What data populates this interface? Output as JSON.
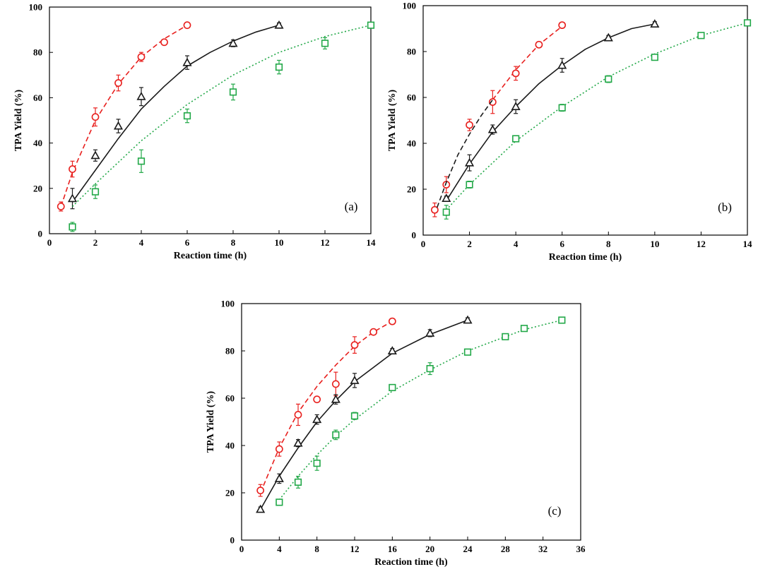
{
  "chart_data": [
    {
      "type": "scatter",
      "panel_label": "(a)",
      "xlabel": "Reaction time (h)",
      "ylabel": "TPA Yield (%)",
      "xlim": [
        0,
        14
      ],
      "ylim": [
        0,
        100
      ],
      "xticks": [
        0,
        2,
        4,
        6,
        8,
        10,
        12,
        14
      ],
      "yticks": [
        0,
        20,
        40,
        60,
        80,
        100
      ],
      "grid": false,
      "series": [
        {
          "color": "#e8201e",
          "marker": "circle",
          "fit": "dashed",
          "x": [
            0.5,
            1,
            2,
            3,
            4,
            5,
            6
          ],
          "y": [
            12,
            28.5,
            51.5,
            66.5,
            78,
            84.5,
            92
          ],
          "err": [
            2,
            3.5,
            4,
            3.5,
            2,
            1,
            1
          ],
          "fit_x": [
            0.5,
            1,
            2,
            3,
            4,
            5,
            6
          ],
          "fit_y": [
            12,
            27,
            50,
            66,
            78,
            86,
            92
          ]
        },
        {
          "color": "#1a1a1a",
          "marker": "triangle",
          "fit": "solid",
          "x": [
            1,
            2,
            3,
            4,
            6,
            8,
            10
          ],
          "y": [
            15.5,
            34.5,
            47.5,
            60.5,
            75.5,
            84,
            92
          ],
          "err": [
            4.5,
            2.5,
            3,
            4,
            3,
            1.5,
            1
          ],
          "fit_x": [
            1,
            2,
            3,
            4,
            5,
            6,
            7,
            8,
            9,
            10
          ],
          "fit_y": [
            14,
            28,
            42,
            55,
            65,
            74,
            80,
            85,
            89,
            92
          ]
        },
        {
          "color": "#22a848",
          "marker": "square",
          "fit": "dotted",
          "x": [
            1,
            2,
            4,
            6,
            8,
            10,
            12,
            14
          ],
          "y": [
            3,
            18.5,
            32,
            52,
            62.5,
            73.5,
            84,
            92
          ],
          "err": [
            2,
            3,
            5,
            3,
            3.5,
            3,
            2.5,
            1
          ],
          "fit_x": [
            1,
            2,
            4,
            6,
            8,
            10,
            12,
            14
          ],
          "fit_y": [
            12,
            22,
            41,
            57,
            70,
            80,
            87,
            92
          ]
        }
      ]
    },
    {
      "type": "scatter",
      "panel_label": "(b)",
      "xlabel": "Reaction time (h)",
      "ylabel": "TPA Yield (%)",
      "xlim": [
        0,
        14
      ],
      "ylim": [
        0,
        100
      ],
      "xticks": [
        0,
        2,
        4,
        6,
        8,
        10,
        12,
        14
      ],
      "yticks": [
        0,
        20,
        40,
        60,
        80,
        100
      ],
      "grid": false,
      "series": [
        {
          "color": "#e8201e",
          "marker": "circle",
          "fit": "dashed",
          "x": [
            0.5,
            1,
            2,
            3,
            4,
            5,
            6
          ],
          "y": [
            11,
            22,
            48,
            58,
            70.5,
            83,
            91.5
          ],
          "err": [
            3,
            3.5,
            2.5,
            5,
            3,
            1,
            1
          ],
          "fit_x": [
            3,
            4,
            5,
            6
          ],
          "fit_y": [
            59,
            72,
            83,
            91
          ]
        },
        {
          "color": "#1a1a1a",
          "marker": "none",
          "fit": "dashed",
          "x": [],
          "y": [],
          "err": [],
          "fit_x": [
            0.6,
            1,
            1.5,
            2,
            2.5,
            3
          ],
          "fit_y": [
            12,
            23,
            35,
            44,
            52,
            59
          ]
        },
        {
          "color": "#1a1a1a",
          "marker": "triangle",
          "fit": "solid",
          "x": [
            1,
            2,
            3,
            4,
            6,
            8,
            10
          ],
          "y": [
            16,
            31.5,
            46,
            56,
            74,
            86,
            92
          ],
          "err": [
            1,
            3.5,
            2,
            3,
            3,
            1,
            1
          ],
          "fit_x": [
            1,
            2,
            3,
            4,
            5,
            6,
            7,
            8,
            9,
            10
          ],
          "fit_y": [
            15,
            31,
            45,
            56,
            66,
            74,
            81,
            86,
            90,
            92
          ]
        },
        {
          "color": "#22a848",
          "marker": "square",
          "fit": "dotted",
          "x": [
            1,
            2,
            4,
            6,
            8,
            10,
            12,
            14
          ],
          "y": [
            10,
            22,
            42,
            55.5,
            68,
            77.5,
            87,
            92.5
          ],
          "err": [
            3,
            1.5,
            1,
            1.5,
            1.5,
            1,
            1,
            1
          ],
          "fit_x": [
            1,
            2,
            4,
            6,
            8,
            10,
            12,
            14
          ],
          "fit_y": [
            11,
            22,
            41,
            56,
            69,
            79,
            87,
            92.5
          ]
        }
      ]
    },
    {
      "type": "scatter",
      "panel_label": "(c)",
      "xlabel": "Reaction time (h)",
      "ylabel": "TPA Yield (%)",
      "xlim": [
        0,
        36
      ],
      "ylim": [
        0,
        100
      ],
      "xticks": [
        0,
        4,
        8,
        12,
        16,
        20,
        24,
        28,
        32,
        36
      ],
      "yticks": [
        0,
        20,
        40,
        60,
        80,
        100
      ],
      "grid": false,
      "series": [
        {
          "color": "#e8201e",
          "marker": "circle",
          "fit": "dashed",
          "x": [
            2,
            4,
            6,
            8,
            10,
            12,
            14,
            16
          ],
          "y": [
            21,
            38.5,
            53,
            59.5,
            66,
            82.5,
            88,
            92.5
          ],
          "err": [
            2.5,
            3,
            4.5,
            1,
            5,
            3.5,
            1,
            1
          ],
          "fit_x": [
            2,
            4,
            6,
            8,
            10,
            12,
            14,
            16
          ],
          "fit_y": [
            20,
            39,
            54,
            65,
            74,
            82,
            88,
            92.5
          ]
        },
        {
          "color": "#1a1a1a",
          "marker": "triangle",
          "fit": "solid",
          "x": [
            2,
            4,
            6,
            8,
            10,
            12,
            16,
            20,
            24
          ],
          "y": [
            13,
            26,
            41,
            51,
            59.5,
            67.5,
            80,
            87.5,
            93
          ],
          "err": [
            1,
            2,
            1.5,
            2,
            2,
            3,
            1,
            1.5,
            1
          ],
          "fit_x": [
            2,
            4,
            6,
            8,
            10,
            12,
            16,
            20,
            24
          ],
          "fit_y": [
            13,
            27,
            39,
            50,
            59,
            67,
            79,
            87,
            93
          ]
        },
        {
          "color": "#22a848",
          "marker": "square",
          "fit": "dotted",
          "x": [
            4,
            6,
            8,
            10,
            12,
            16,
            20,
            24,
            28,
            30,
            34
          ],
          "y": [
            16,
            24.5,
            32.5,
            44.5,
            52.5,
            64.5,
            72.5,
            79.5,
            86,
            89.5,
            93
          ],
          "err": [
            1,
            2.5,
            3,
            2,
            1.5,
            1,
            2.5,
            1,
            1,
            1,
            1
          ],
          "fit_x": [
            4,
            6,
            8,
            10,
            12,
            16,
            20,
            24,
            28,
            30,
            34
          ],
          "fit_y": [
            17,
            27,
            36,
            44,
            51,
            63,
            72,
            80,
            86,
            89,
            93
          ]
        }
      ]
    }
  ]
}
